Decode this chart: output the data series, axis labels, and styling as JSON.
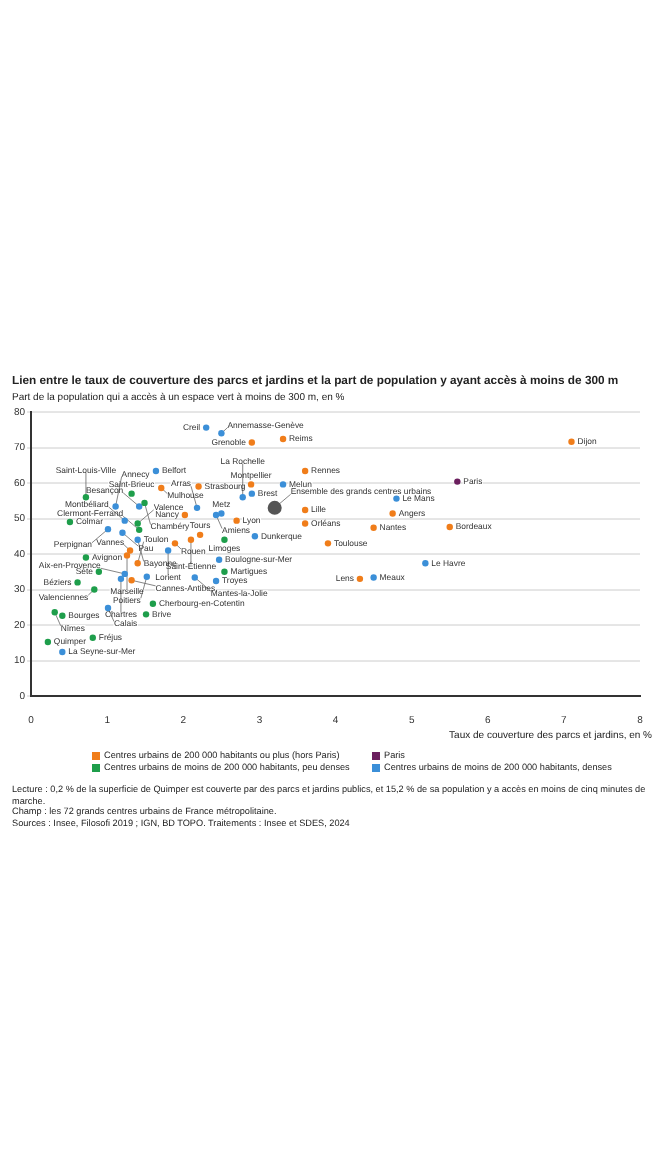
{
  "chart_data": {
    "type": "scatter",
    "title": "Lien entre le taux de couverture des parcs et jardins et la part de population y ayant accès à moins de 300 m",
    "ylabel": "Part de la population qui a accès à un espace vert à moins de 300 m, en %",
    "xlabel": "Taux de couverture des parcs et jardins, en %",
    "xlim": [
      0,
      8
    ],
    "xticks": [
      0,
      1,
      2,
      3,
      4,
      5,
      6,
      7,
      8
    ],
    "ylim": [
      0,
      80
    ],
    "yticks": [
      0,
      10,
      20,
      30,
      40,
      50,
      60,
      70,
      80
    ],
    "grid": "y",
    "legend": "bottom",
    "marker": "circle",
    "series": [
      {
        "name": "Centres urbains de 200 000 habitants ou plus (hors Paris)",
        "color": "#f07d1a",
        "x": [
          1.71,
          2.2,
          2.02,
          2.22,
          1.3,
          2.1,
          1.89,
          1.26,
          1.4,
          1.32,
          3.31,
          2.9,
          3.6,
          2.89,
          2.7,
          3.6,
          3.6,
          3.9,
          4.75,
          4.5,
          4.32,
          7.1,
          5.5
        ],
        "values": [
          58.6,
          59,
          51,
          45.4,
          41,
          44,
          43,
          39.6,
          37.4,
          32.6,
          72.4,
          71.4,
          63.4,
          59.6,
          49.4,
          52.4,
          48.6,
          43,
          51.4,
          47.4,
          33,
          71.6,
          47.6
        ]
      },
      {
        "name": "Paris",
        "color": "#6b1f5e",
        "x": [
          5.6
        ],
        "values": [
          60.4
        ]
      },
      {
        "name": "Centres urbains de moins de 200 000 habitants, peu denses",
        "color": "#1e9e4b",
        "x": [
          1.32,
          1.49,
          0.72,
          0.51,
          1.4,
          1.42,
          0.72,
          0.89,
          0.61,
          0.83,
          1.6,
          0.31,
          0.41,
          1.51,
          0.22,
          0.81,
          2.54,
          2.54
        ],
        "values": [
          57,
          54.4,
          56,
          49,
          48.6,
          46.8,
          39,
          35,
          32,
          30,
          26,
          23.6,
          22.6,
          23,
          15.2,
          16.4,
          35,
          44
        ]
      },
      {
        "name": "Centres urbains de moins de 200 000 habitants, denses",
        "color": "#3b8fd8",
        "x": [
          2.3,
          2.5,
          1.64,
          1.11,
          1.42,
          1.23,
          1.01,
          1.2,
          1.4,
          2.18,
          2.5,
          1.8,
          1.23,
          1.18,
          1.52,
          1.01,
          0.41,
          2.47,
          2.43,
          2.15,
          3.31,
          2.9,
          2.78,
          2.43,
          4.8,
          2.94,
          5.18,
          4.5
        ],
        "values": [
          75.6,
          74,
          63.4,
          53.4,
          53.4,
          49.4,
          47,
          46,
          44,
          53,
          51.4,
          41,
          34.4,
          33,
          33.6,
          24.8,
          12.4,
          38.4,
          32.4,
          33.4,
          59.6,
          57,
          56,
          51,
          55.6,
          45,
          37.4,
          33.4
        ]
      },
      {
        "color": "#555555",
        "x": [
          3.2
        ],
        "values": [
          53
        ]
      }
    ],
    "annotations": [
      {
        "text": "Mulhouse",
        "x": 1.71,
        "y": 58.6
      },
      {
        "text": "Strasbourg",
        "x": 2.2,
        "y": 59
      },
      {
        "text": "Nancy",
        "x": 2.02,
        "y": 51
      },
      {
        "text": "Tours",
        "x": 2.22,
        "y": 45.4
      },
      {
        "text": "Vannes",
        "x": 1.3,
        "y": 41
      },
      {
        "text": "Saint-Étienne",
        "x": 2.1,
        "y": 44
      },
      {
        "text": "Rouen",
        "x": 1.89,
        "y": 43
      },
      {
        "text": "Marseille",
        "x": 1.26,
        "y": 39.6
      },
      {
        "text": "Toulon",
        "x": 1.4,
        "y": 37.4
      },
      {
        "text": "Cannes-Antibes",
        "x": 1.32,
        "y": 32.6
      },
      {
        "text": "Reims",
        "x": 3.31,
        "y": 72.4
      },
      {
        "text": "Grenoble",
        "x": 2.9,
        "y": 71.4
      },
      {
        "text": "Rennes",
        "x": 3.6,
        "y": 63.4
      },
      {
        "text": "Montpellier",
        "x": 2.89,
        "y": 59.6
      },
      {
        "text": "Lyon",
        "x": 2.7,
        "y": 49.4
      },
      {
        "text": "Lille",
        "x": 3.6,
        "y": 52.4
      },
      {
        "text": "Orléans",
        "x": 3.6,
        "y": 48.6
      },
      {
        "text": "Toulouse",
        "x": 3.9,
        "y": 43
      },
      {
        "text": "Angers",
        "x": 4.75,
        "y": 51.4
      },
      {
        "text": "Nantes",
        "x": 4.5,
        "y": 47.4
      },
      {
        "text": "Lens",
        "x": 4.32,
        "y": 33
      },
      {
        "text": "Dijon",
        "x": 7.1,
        "y": 71.6
      },
      {
        "text": "Bordeaux",
        "x": 5.5,
        "y": 47.6
      },
      {
        "text": "Paris",
        "x": 5.6,
        "y": 60.4
      },
      {
        "text": "Saint-Brieuc",
        "x": 1.32,
        "y": 57
      },
      {
        "text": "Chambéry",
        "x": 1.49,
        "y": 54.4
      },
      {
        "text": "Saint-Louis-Ville",
        "x": 0.72,
        "y": 56
      },
      {
        "text": "Colmar",
        "x": 0.51,
        "y": 49
      },
      {
        "text": "Valence",
        "x": 1.4,
        "y": 48.6
      },
      {
        "text": "Clermont-Ferrand",
        "x": 1.42,
        "y": 46.8
      },
      {
        "text": "Avignon",
        "x": 0.72,
        "y": 39
      },
      {
        "text": "Sète",
        "x": 0.89,
        "y": 35
      },
      {
        "text": "Béziers",
        "x": 0.61,
        "y": 32
      },
      {
        "text": "Valenciennes",
        "x": 0.83,
        "y": 30
      },
      {
        "text": "Cherbourg-en-Cotentin",
        "x": 1.6,
        "y": 26
      },
      {
        "text": "Nîmes",
        "x": 0.31,
        "y": 23.6
      },
      {
        "text": "Bourges",
        "x": 0.41,
        "y": 22.6
      },
      {
        "text": "Brive",
        "x": 1.51,
        "y": 23
      },
      {
        "text": "Quimper",
        "x": 0.22,
        "y": 15.2
      },
      {
        "text": "Fréjus",
        "x": 0.81,
        "y": 16.4
      },
      {
        "text": "Martigues",
        "x": 2.54,
        "y": 35
      },
      {
        "text": "Limoges",
        "x": 2.54,
        "y": 44
      },
      {
        "text": "Creil",
        "x": 2.3,
        "y": 75.6
      },
      {
        "text": "Annemasse-Genève",
        "x": 2.5,
        "y": 74
      },
      {
        "text": "Belfort",
        "x": 1.64,
        "y": 63.4
      },
      {
        "text": "Annecy",
        "x": 1.11,
        "y": 53.4
      },
      {
        "text": "Besançon",
        "x": 1.42,
        "y": 53.4
      },
      {
        "text": "Montbéliard",
        "x": 1.23,
        "y": 49.4
      },
      {
        "text": "Perpignan",
        "x": 1.01,
        "y": 47
      },
      {
        "text": "Pau",
        "x": 1.2,
        "y": 46
      },
      {
        "text": "Bayonne",
        "x": 1.4,
        "y": 44
      },
      {
        "text": "Arras",
        "x": 2.18,
        "y": 53
      },
      {
        "text": "Metz",
        "x": 2.5,
        "y": 51.4
      },
      {
        "text": "Lorient",
        "x": 1.8,
        "y": 41
      },
      {
        "text": "Aix-en-Provence",
        "x": 1.23,
        "y": 34.4
      },
      {
        "text": "Chartres",
        "x": 1.18,
        "y": 33
      },
      {
        "text": "Poitiers",
        "x": 1.52,
        "y": 33.6
      },
      {
        "text": "Calais",
        "x": 1.01,
        "y": 24.8
      },
      {
        "text": "La Seyne-sur-Mer",
        "x": 0.41,
        "y": 12.4
      },
      {
        "text": "Boulogne-sur-Mer",
        "x": 2.47,
        "y": 38.4
      },
      {
        "text": "Troyes",
        "x": 2.43,
        "y": 32.4
      },
      {
        "text": "Mantes-la-Jolie",
        "x": 2.15,
        "y": 33.4
      },
      {
        "text": "Melun",
        "x": 3.31,
        "y": 59.6
      },
      {
        "text": "Brest",
        "x": 2.9,
        "y": 57
      },
      {
        "text": "La Rochelle",
        "x": 2.78,
        "y": 56
      },
      {
        "text": "Amiens",
        "x": 2.43,
        "y": 51
      },
      {
        "text": "Le Mans",
        "x": 4.8,
        "y": 55.6
      },
      {
        "text": "Dunkerque",
        "x": 2.94,
        "y": 45
      },
      {
        "text": "Le Havre",
        "x": 5.18,
        "y": 37.4
      },
      {
        "text": "Meaux",
        "x": 4.5,
        "y": 33.4
      },
      {
        "text": "Ensemble des grands centres urbains",
        "x": 3.2,
        "y": 53
      },
      "Lecture : 0,2 % de la superficie de Quimper est couverte par des parcs et jardins publics, et 15,2 % de sa population y a accès en moins de cinq minutes de marche.",
      "Champ : les 72 grands centres urbains de France métropolitaine.",
      "Sources : Insee, Filosofi 2019 ; IGN, BD TOPO. Traitements : Insee et SDES, 2024"
    ]
  }
}
